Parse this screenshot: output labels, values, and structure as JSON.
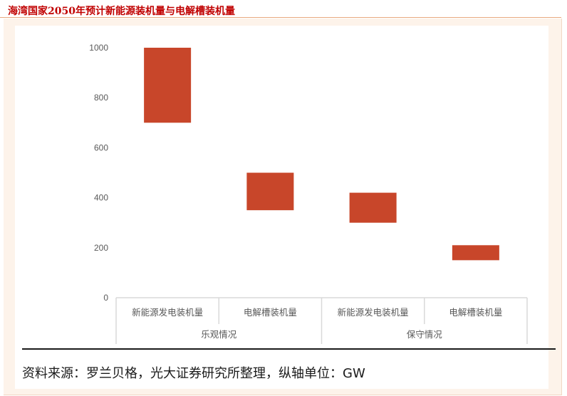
{
  "title": "海湾国家2050年预计新能源装机量与电解槽装机量",
  "source": "资料来源：罗兰贝格，光大证券研究所整理，纵轴单位：GW",
  "colors": {
    "bar": "#c8462a",
    "axis": "#d9d9d9",
    "tick_text": "#595959"
  },
  "chart_data": {
    "type": "bar",
    "title": "",
    "xlabel": "",
    "ylabel": "",
    "unit": "GW",
    "ylim": [
      0,
      1000
    ],
    "yticks": [
      0,
      200,
      400,
      600,
      800,
      1000
    ],
    "groups": [
      {
        "label": "乐观情况",
        "categories": [
          "新能源发电装机量",
          "电解槽装机量"
        ]
      },
      {
        "label": "保守情况",
        "categories": [
          "新能源发电装机量",
          "电解槽装机量"
        ]
      }
    ],
    "bars": [
      {
        "group": "乐观情况",
        "category": "新能源发电装机量",
        "low": 700,
        "high": 1000
      },
      {
        "group": "乐观情况",
        "category": "电解槽装机量",
        "low": 350,
        "high": 500
      },
      {
        "group": "保守情况",
        "category": "新能源发电装机量",
        "low": 300,
        "high": 420
      },
      {
        "group": "保守情况",
        "category": "电解槽装机量",
        "low": 150,
        "high": 210
      }
    ],
    "grid": false,
    "legend": "none"
  }
}
